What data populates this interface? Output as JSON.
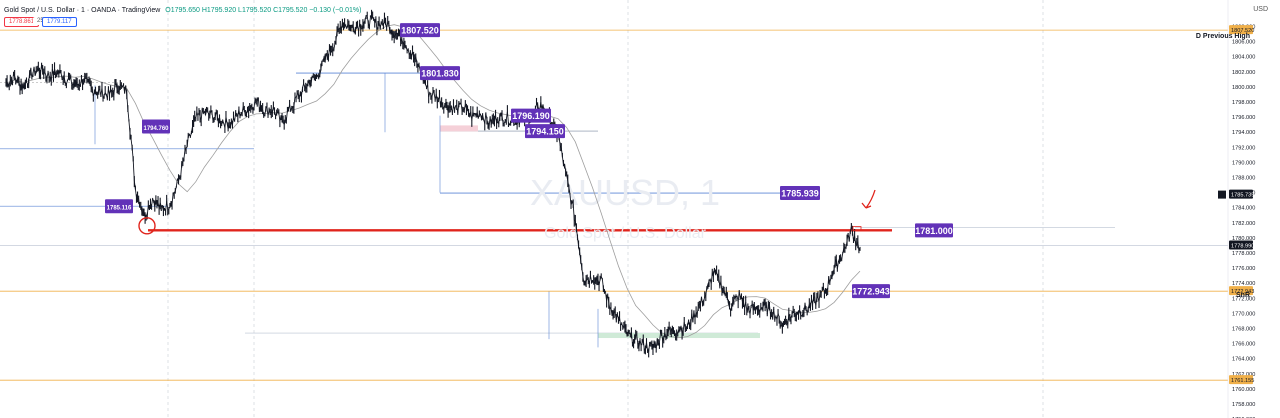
{
  "header": {
    "symbol_title": "Gold Spot / U.S. Dollar · 1 · OANDA · TradingView",
    "ohlc": "O1795.650 H1795.920 L1795.520 C1795.520 −0.130 (−0.01%)",
    "sell_price": "1778.861",
    "spread": "25.0",
    "buy_price": "1779.117",
    "currency": "USD"
  },
  "colors": {
    "background": "#ffffff",
    "candle": "#131722",
    "label_purple": "#6232b8",
    "resistance_red": "#e0241c",
    "orange_line": "#f0b04a",
    "blue_line": "#5b86d6",
    "ma_line": "#9e9e9e"
  },
  "chart_data": {
    "type": "line",
    "title": "Gold Spot / U.S. Dollar · 1 · OANDA",
    "watermark": "XAUUSD, 1",
    "watermark_sub": "Gold Spot / U.S. Dollar",
    "ylim": [
      1755.0,
      1809.0
    ],
    "y_ticks": [
      "1808.000",
      "1806.000",
      "1804.000",
      "1802.000",
      "1800.000",
      "1798.000",
      "1796.000",
      "1794.000",
      "1792.000",
      "1790.000",
      "1788.000",
      "1786.000",
      "1784.000",
      "1782.000",
      "1780.000",
      "1778.000",
      "1776.000",
      "1774.000",
      "1772.000",
      "1770.000",
      "1768.000",
      "1766.000",
      "1764.000",
      "1762.000",
      "1760.000",
      "1758.000",
      "1756.000"
    ],
    "y_tick_values": [
      1808,
      1806,
      1804,
      1802,
      1800,
      1798,
      1796,
      1794,
      1792,
      1790,
      1788,
      1786,
      1784,
      1782,
      1780,
      1778,
      1776,
      1774,
      1772,
      1770,
      1768,
      1766,
      1764,
      1762,
      1760,
      1758,
      1756
    ],
    "series": [
      {
        "values": [
          1800.5,
          1801.3,
          1800.0,
          1801.8,
          1802.3,
          1801.5,
          1802.0,
          1801.1,
          1800.2,
          1800.9,
          1799.6,
          1799.2,
          1799.0,
          1800.1,
          1799.5,
          1786.5,
          1783.0,
          1785.2,
          1783.8,
          1784.6,
          1787.5,
          1792.2,
          1795.8,
          1796.5,
          1796.2,
          1795.6,
          1795.0,
          1796.5,
          1797.0,
          1798.2,
          1796.8,
          1797.0,
          1795.2,
          1797.2,
          1799.0,
          1800.4,
          1801.3,
          1803.6,
          1805.6,
          1808.6,
          1807.9,
          1808.2,
          1808.9,
          1808.3,
          1808.5,
          1807.3,
          1806.5,
          1804.4,
          1802.3,
          1799.3,
          1798.6,
          1797.6,
          1797.1,
          1797.3,
          1796.1,
          1796.6,
          1795.2,
          1795.9,
          1796.0,
          1795.5,
          1795.9,
          1796.1,
          1797.7,
          1795.7,
          1793.6,
          1787.8,
          1782.3,
          1774.5,
          1774.8,
          1774.3,
          1771.0,
          1769.1,
          1767.2,
          1766.4,
          1765.8,
          1765.4,
          1767.1,
          1767.6,
          1768.0,
          1768.2,
          1770.3,
          1772.2,
          1775.4,
          1773.6,
          1771.0,
          1772.3,
          1770.5,
          1770.6,
          1770.8,
          1770.1,
          1768.5,
          1769.8,
          1770.3,
          1770.7,
          1771.8,
          1773.2,
          1775.9,
          1778.0,
          1781.0,
          1778.6
        ]
      }
    ],
    "horizontal_levels": [
      {
        "price": 1781.0,
        "label": "1781.000"
      },
      {
        "price": 1807.52,
        "label": "1807.520"
      },
      {
        "price": 1801.83,
        "label": "1801.830"
      },
      {
        "price": 1796.19,
        "label": "1796.190"
      },
      {
        "price": 1794.15,
        "label": "1794.150"
      },
      {
        "price": 1785.939,
        "label": "1785.939"
      },
      {
        "price": 1772.943,
        "label": "1772.943"
      }
    ],
    "small_labels": [
      "1794.760",
      "1785.116"
    ],
    "annotations": [
      "D Previous High",
      "SnR"
    ],
    "axis_price_tags": [
      "1785.735",
      "1778.990",
      "1772.943",
      "1761.155"
    ],
    "grid": false
  }
}
